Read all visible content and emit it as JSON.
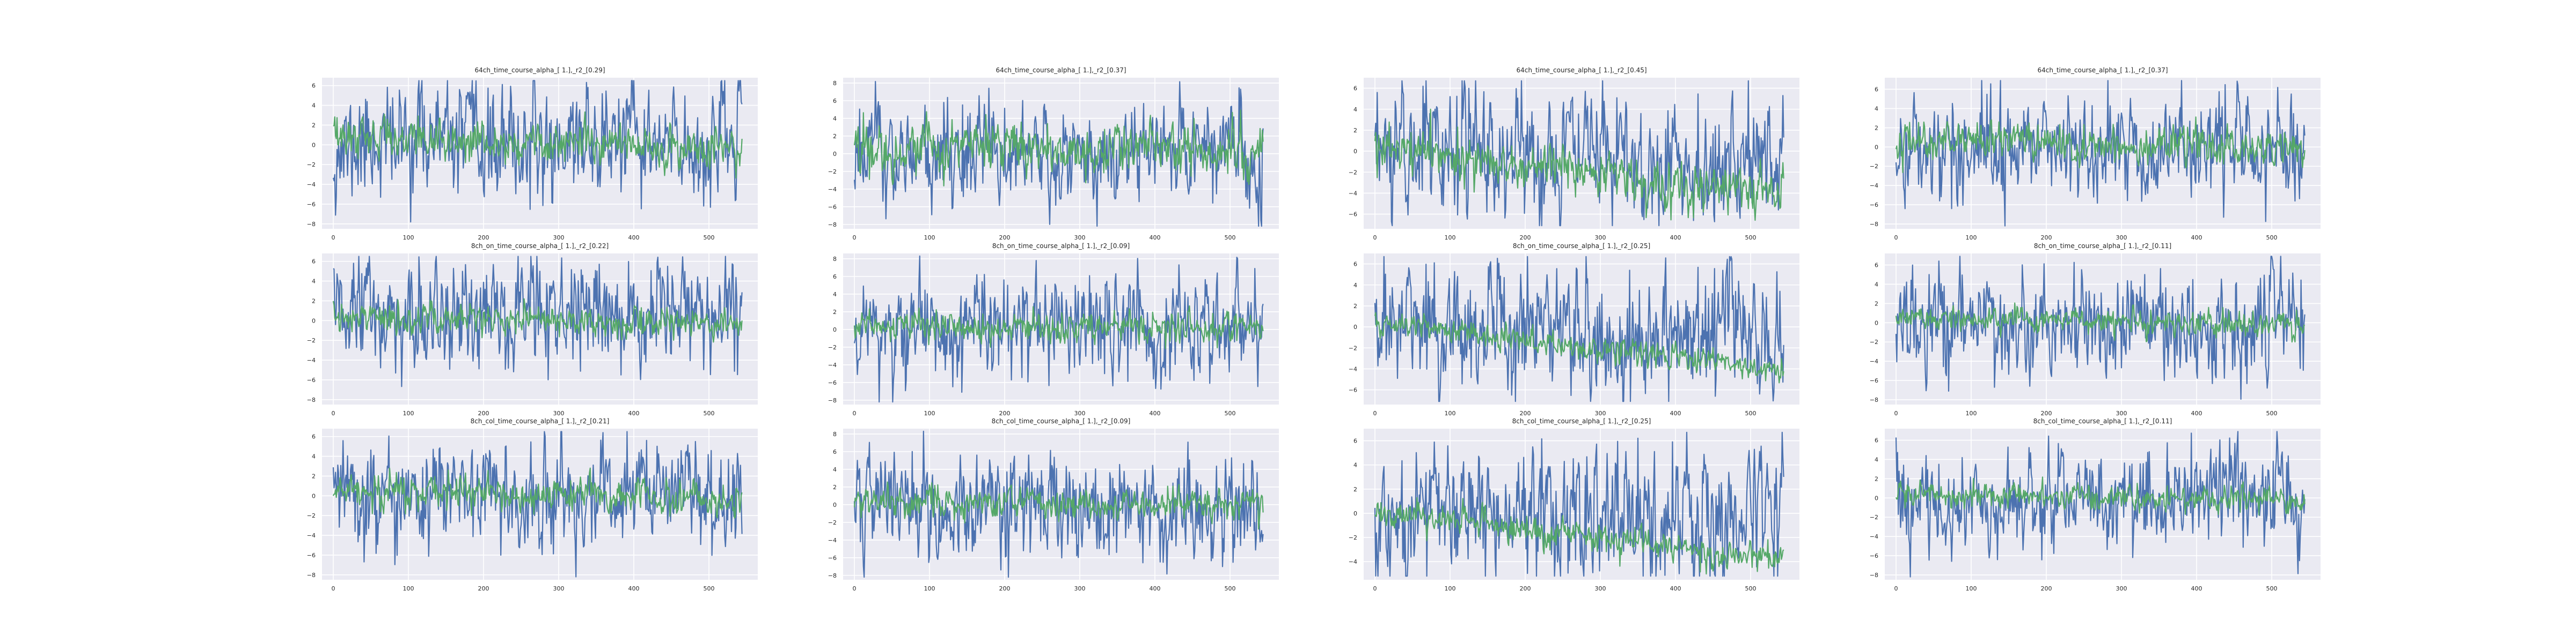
{
  "figure": {
    "grid_rows": 3,
    "grid_cols": 4,
    "background": "#ffffff",
    "axes_background": "#EAEAF2",
    "grid_color": "#ffffff",
    "series_colors": [
      "#4C72B0",
      "#55A868"
    ]
  },
  "chart_data": [
    {
      "type": "line",
      "title": "64ch_time_course_alpha_[ 1.],_r2_[0.29]",
      "xlim": [
        -15,
        565
      ],
      "ylim": [
        -8.5,
        6.8
      ],
      "xticks": [
        0,
        100,
        200,
        300,
        400,
        500
      ],
      "yticks": [
        -8,
        -6,
        -4,
        -2,
        0,
        2,
        4,
        6
      ],
      "grid": true,
      "series": [
        {
          "color": "#4C72B0",
          "n": 545,
          "seed": 11,
          "profile": {
            "amp": 2.6,
            "trend": 0.0,
            "offset": 0.2
          }
        },
        {
          "color": "#55A868",
          "n": 545,
          "seed": 12,
          "profile": {
            "amp": 0.9,
            "trend": -1.2,
            "offset": 0.8
          }
        }
      ]
    },
    {
      "type": "line",
      "title": "64ch_time_course_alpha_[ 1.],_r2_[0.37]",
      "xlim": [
        -15,
        565
      ],
      "ylim": [
        -8.5,
        8.6
      ],
      "xticks": [
        0,
        100,
        200,
        300,
        400,
        500
      ],
      "yticks": [
        -8,
        -6,
        -4,
        -2,
        0,
        2,
        4,
        6,
        8
      ],
      "grid": true,
      "series": [
        {
          "color": "#4C72B0",
          "n": 545,
          "seed": 21,
          "profile": {
            "amp": 2.8,
            "trend": 0.0,
            "offset": 0.0
          }
        },
        {
          "color": "#55A868",
          "n": 545,
          "seed": 22,
          "profile": {
            "amp": 1.3,
            "trend": -0.5,
            "offset": 0.8
          }
        }
      ]
    },
    {
      "type": "line",
      "title": "64ch_time_course_alpha_[ 1.],_r2_[0.45]",
      "xlim": [
        -15,
        565
      ],
      "ylim": [
        -7.4,
        7.0
      ],
      "xticks": [
        0,
        100,
        200,
        300,
        400,
        500
      ],
      "yticks": [
        -6,
        -4,
        -2,
        0,
        2,
        4,
        6
      ],
      "grid": true,
      "series": [
        {
          "color": "#4C72B0",
          "n": 545,
          "seed": 31,
          "profile": {
            "amp": 2.9,
            "trend": -1.2,
            "offset": 0.3
          }
        },
        {
          "color": "#55A868",
          "n": 545,
          "seed": 32,
          "profile": {
            "amp": 1.0,
            "trend": -5.0,
            "offset": 0.5
          }
        }
      ]
    },
    {
      "type": "line",
      "title": "64ch_time_course_alpha_[ 1.],_r2_[0.37]",
      "xlim": [
        -15,
        565
      ],
      "ylim": [
        -8.5,
        7.2
      ],
      "xticks": [
        0,
        100,
        200,
        300,
        400,
        500
      ],
      "yticks": [
        -8,
        -6,
        -4,
        -2,
        0,
        2,
        4,
        6
      ],
      "grid": true,
      "series": [
        {
          "color": "#4C72B0",
          "n": 545,
          "seed": 41,
          "profile": {
            "amp": 2.5,
            "trend": 0.0,
            "offset": 0.0
          }
        },
        {
          "color": "#55A868",
          "n": 545,
          "seed": 42,
          "profile": {
            "amp": 0.9,
            "trend": -1.0,
            "offset": 0.8
          }
        }
      ]
    },
    {
      "type": "line",
      "title": "8ch_on_time_course_alpha_[ 1.],_r2_[0.22]",
      "xlim": [
        -15,
        565
      ],
      "ylim": [
        -8.5,
        6.8
      ],
      "xticks": [
        0,
        100,
        200,
        300,
        400,
        500
      ],
      "yticks": [
        -8,
        -6,
        -4,
        -2,
        0,
        2,
        4,
        6
      ],
      "grid": true,
      "series": [
        {
          "color": "#4C72B0",
          "n": 545,
          "seed": 51,
          "profile": {
            "amp": 2.6,
            "trend": 0.0,
            "offset": 0.2
          }
        },
        {
          "color": "#55A868",
          "n": 545,
          "seed": 52,
          "profile": {
            "amp": 0.7,
            "trend": -1.0,
            "offset": 0.6
          }
        }
      ]
    },
    {
      "type": "line",
      "title": "8ch_on_time_course_alpha_[ 1.],_r2_[0.09]",
      "xlim": [
        -15,
        565
      ],
      "ylim": [
        -8.5,
        8.6
      ],
      "xticks": [
        0,
        100,
        200,
        300,
        400,
        500
      ],
      "yticks": [
        -8,
        -6,
        -4,
        -2,
        0,
        2,
        4,
        6,
        8
      ],
      "grid": true,
      "series": [
        {
          "color": "#4C72B0",
          "n": 545,
          "seed": 61,
          "profile": {
            "amp": 2.8,
            "trend": 0.0,
            "offset": 0.0
          }
        },
        {
          "color": "#55A868",
          "n": 545,
          "seed": 62,
          "profile": {
            "amp": 0.8,
            "trend": -0.4,
            "offset": 0.4
          }
        }
      ]
    },
    {
      "type": "line",
      "title": "8ch_on_time_course_alpha_[ 1.],_r2_[0.25]",
      "xlim": [
        -15,
        565
      ],
      "ylim": [
        -7.4,
        7.0
      ],
      "xticks": [
        0,
        100,
        200,
        300,
        400,
        500
      ],
      "yticks": [
        -6,
        -4,
        -2,
        0,
        2,
        4,
        6
      ],
      "grid": true,
      "series": [
        {
          "color": "#4C72B0",
          "n": 545,
          "seed": 71,
          "profile": {
            "amp": 2.9,
            "trend": -1.0,
            "offset": 0.3
          }
        },
        {
          "color": "#55A868",
          "n": 545,
          "seed": 72,
          "profile": {
            "amp": 0.6,
            "trend": -4.5,
            "offset": 0.4
          }
        }
      ]
    },
    {
      "type": "line",
      "title": "8ch_on_time_course_alpha_[ 1.],_r2_[0.11]",
      "xlim": [
        -15,
        565
      ],
      "ylim": [
        -8.5,
        7.2
      ],
      "xticks": [
        0,
        100,
        200,
        300,
        400,
        500
      ],
      "yticks": [
        -8,
        -6,
        -4,
        -2,
        0,
        2,
        4,
        6
      ],
      "grid": true,
      "series": [
        {
          "color": "#4C72B0",
          "n": 545,
          "seed": 81,
          "profile": {
            "amp": 2.5,
            "trend": 0.0,
            "offset": 0.0
          }
        },
        {
          "color": "#55A868",
          "n": 545,
          "seed": 82,
          "profile": {
            "amp": 0.6,
            "trend": -0.8,
            "offset": 0.5
          }
        }
      ]
    },
    {
      "type": "line",
      "title": "8ch_col_time_course_alpha_[ 1.],_r2_[0.21]",
      "xlim": [
        -15,
        565
      ],
      "ylim": [
        -8.5,
        6.8
      ],
      "xticks": [
        0,
        100,
        200,
        300,
        400,
        500
      ],
      "yticks": [
        -8,
        -6,
        -4,
        -2,
        0,
        2,
        4,
        6
      ],
      "grid": true,
      "series": [
        {
          "color": "#4C72B0",
          "n": 545,
          "seed": 91,
          "profile": {
            "amp": 2.6,
            "trend": 0.0,
            "offset": 0.2
          }
        },
        {
          "color": "#55A868",
          "n": 545,
          "seed": 92,
          "profile": {
            "amp": 0.8,
            "trend": -1.2,
            "offset": 0.8
          }
        }
      ]
    },
    {
      "type": "line",
      "title": "8ch_col_time_course_alpha_[ 1.],_r2_[0.09]",
      "xlim": [
        -15,
        565
      ],
      "ylim": [
        -8.5,
        8.6
      ],
      "xticks": [
        0,
        100,
        200,
        300,
        400,
        500
      ],
      "yticks": [
        -8,
        -6,
        -4,
        -2,
        0,
        2,
        4,
        6,
        8
      ],
      "grid": true,
      "series": [
        {
          "color": "#4C72B0",
          "n": 545,
          "seed": 101,
          "profile": {
            "amp": 2.8,
            "trend": 0.0,
            "offset": 0.0
          }
        },
        {
          "color": "#55A868",
          "n": 545,
          "seed": 102,
          "profile": {
            "amp": 0.8,
            "trend": -0.4,
            "offset": 0.3
          }
        }
      ]
    },
    {
      "type": "line",
      "title": "8ch_col_time_course_alpha_[ 1.],_r2_[0.25]",
      "xlim": [
        -15,
        565
      ],
      "ylim": [
        -5.5,
        7.0
      ],
      "xticks": [
        0,
        100,
        200,
        300,
        400,
        500
      ],
      "yticks": [
        -4,
        -2,
        0,
        2,
        4,
        6
      ],
      "grid": true,
      "series": [
        {
          "color": "#4C72B0",
          "n": 545,
          "seed": 111,
          "profile": {
            "amp": 2.6,
            "trend": -0.6,
            "offset": 0.4
          }
        },
        {
          "color": "#55A868",
          "n": 545,
          "seed": 112,
          "profile": {
            "amp": 0.6,
            "trend": -4.0,
            "offset": 0.2
          }
        }
      ]
    },
    {
      "type": "line",
      "title": "8ch_col_time_course_alpha_[ 1.],_r2_[0.11]",
      "xlim": [
        -15,
        565
      ],
      "ylim": [
        -8.5,
        7.2
      ],
      "xticks": [
        0,
        100,
        200,
        300,
        400,
        500
      ],
      "yticks": [
        -8,
        -6,
        -4,
        -2,
        0,
        2,
        4,
        6
      ],
      "grid": true,
      "series": [
        {
          "color": "#4C72B0",
          "n": 545,
          "seed": 121,
          "profile": {
            "amp": 2.5,
            "trend": 0.0,
            "offset": 0.0
          }
        },
        {
          "color": "#55A868",
          "n": 545,
          "seed": 122,
          "profile": {
            "amp": 0.6,
            "trend": -0.8,
            "offset": 0.5
          }
        }
      ]
    }
  ]
}
